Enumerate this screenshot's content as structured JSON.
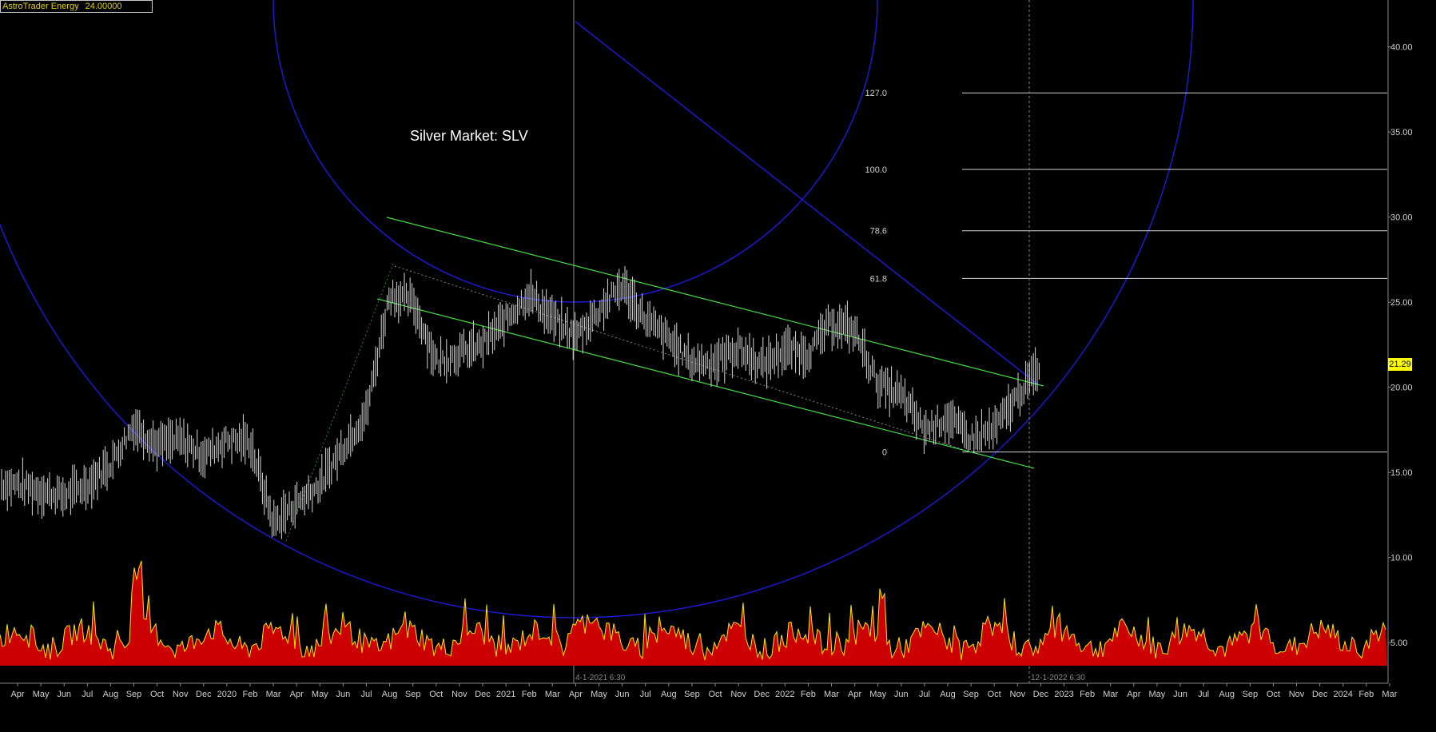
{
  "header": {
    "instrument": "AstroTrader Energy",
    "value": "24.00000"
  },
  "chart_title": "Silver Market:  SLV",
  "last_price": "21.29",
  "colors": {
    "background": "#000000",
    "price_bars": "#d8d8d8",
    "channel": "#44dd44",
    "arcs": "#1a1ad0",
    "volume_fill": "#cc0000",
    "volume_outline": "#ffe600",
    "price_tag": "#ffff00",
    "fib_lines": "#d0d0d0"
  },
  "chart_data": {
    "type": "line",
    "title": "Silver Market:  SLV",
    "ylim": [
      6,
      43
    ],
    "yticks": [
      "40.00",
      "35.00",
      "30.00",
      "25.00",
      "20.00",
      "15.00",
      "10.00",
      "5.00"
    ],
    "xticks": [
      "Apr",
      "May",
      "Jun",
      "Jul",
      "Aug",
      "Sep",
      "Oct",
      "Nov",
      "Dec",
      "2020",
      "Feb",
      "Mar",
      "Apr",
      "May",
      "Jun",
      "Jul",
      "Aug",
      "Sep",
      "Oct",
      "Nov",
      "Dec",
      "2021",
      "Feb",
      "Mar",
      "Apr",
      "May",
      "Jun",
      "Jul",
      "Aug",
      "Sep",
      "Oct",
      "Nov",
      "Dec",
      "2022",
      "Feb",
      "Mar",
      "Apr",
      "May",
      "Jun",
      "Jul",
      "Aug",
      "Sep",
      "Oct",
      "Nov",
      "Dec",
      "2023",
      "Feb",
      "Mar",
      "Apr",
      "May",
      "Jun",
      "Jul",
      "Aug",
      "Sep",
      "Oct",
      "Nov",
      "Dec",
      "2024",
      "Feb",
      "Mar"
    ],
    "vertical_markers": [
      "4-1-2021 6:30",
      "12-1-2022 6:30"
    ],
    "fib_levels": [
      {
        "label": "127.0",
        "value": 37.3
      },
      {
        "label": "100.0",
        "value": 32.8
      },
      {
        "label": "78.6",
        "value": 29.2
      },
      {
        "label": "61.8",
        "value": 26.4
      },
      {
        "label": "0",
        "value": 16.2
      }
    ],
    "price_series": {
      "name": "",
      "points": [
        [
          "Apr 2019",
          14.3
        ],
        [
          "May 2019",
          13.9
        ],
        [
          "Jun 2019",
          13.6
        ],
        [
          "Jul 2019",
          14.3
        ],
        [
          "Aug 2019",
          15.5
        ],
        [
          "Sep 2019",
          17.8
        ],
        [
          "Oct 2019",
          16.6
        ],
        [
          "Nov 2019",
          16.9
        ],
        [
          "Dec 2019",
          16.0
        ],
        [
          "Jan 2020",
          16.9
        ],
        [
          "Feb 2020",
          16.8
        ],
        [
          "Mar 2020",
          12.0
        ],
        [
          "Apr 2020",
          13.2
        ],
        [
          "May 2020",
          14.3
        ],
        [
          "Jun 2020",
          16.5
        ],
        [
          "Jul 2020",
          18.5
        ],
        [
          "Aug 2020",
          25.5
        ],
        [
          "Sep 2020",
          25.0
        ],
        [
          "Oct 2020",
          21.5
        ],
        [
          "Nov 2020",
          22.0
        ],
        [
          "Dec 2020",
          22.5
        ],
        [
          "Jan 2021",
          24.0
        ],
        [
          "Feb 2021",
          25.5
        ],
        [
          "Mar 2021",
          24.0
        ],
        [
          "Apr 2021",
          23.0
        ],
        [
          "May 2021",
          24.5
        ],
        [
          "Jun 2021",
          26.0
        ],
        [
          "Jul 2021",
          24.0
        ],
        [
          "Aug 2021",
          22.8
        ],
        [
          "Sep 2021",
          21.5
        ],
        [
          "Oct 2021",
          21.5
        ],
        [
          "Nov 2021",
          22.3
        ],
        [
          "Dec 2021",
          21.3
        ],
        [
          "Jan 2022",
          22.2
        ],
        [
          "Feb 2022",
          22.0
        ],
        [
          "Mar 2022",
          23.8
        ],
        [
          "Apr 2022",
          23.3
        ],
        [
          "May 2022",
          20.2
        ],
        [
          "Jun 2022",
          19.5
        ],
        [
          "Jul 2022",
          17.5
        ],
        [
          "Aug 2022",
          18.2
        ],
        [
          "Sep 2022",
          17.0
        ],
        [
          "Oct 2022",
          17.5
        ],
        [
          "Nov 2022",
          19.5
        ],
        [
          "Dec 2022",
          21.29
        ]
      ]
    },
    "volume_axis_label": "5.00"
  }
}
